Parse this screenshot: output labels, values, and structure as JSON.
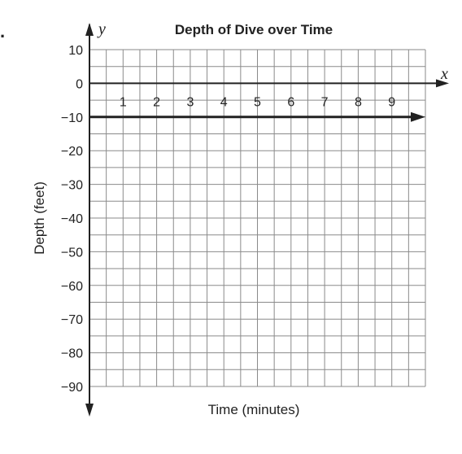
{
  "chart_data": {
    "type": "line",
    "title": "Depth of Dive over Time",
    "xlabel": "Time (minutes)",
    "ylabel": "Depth (feet)",
    "x_axis_letter": "x",
    "y_axis_letter": "y",
    "xlim": [
      0,
      10
    ],
    "ylim": [
      -90,
      10
    ],
    "x_ticks": [
      1,
      2,
      3,
      4,
      5,
      6,
      7,
      8,
      9
    ],
    "y_ticks": [
      10,
      0,
      -10,
      -20,
      -30,
      -40,
      -50,
      -60,
      -70,
      -80,
      -90
    ],
    "x_tick_labels": [
      "1",
      "2",
      "3",
      "4",
      "5",
      "6",
      "7",
      "8",
      "9"
    ],
    "y_tick_labels": [
      "10",
      "0",
      "−10",
      "−20",
      "−30",
      "−40",
      "−50",
      "−60",
      "−70",
      "−80",
      "−90"
    ],
    "grid": true,
    "grid_minor_x_step": 0.5,
    "grid_minor_y_step": 5,
    "series": [
      {
        "x": [
          0,
          10
        ],
        "y": [
          -10,
          -10
        ],
        "arrow_end": true,
        "color": "#222222"
      }
    ]
  },
  "colors": {
    "grid": "#8a8a8a",
    "axis": "#222222",
    "text": "#222222"
  },
  "marker": "."
}
